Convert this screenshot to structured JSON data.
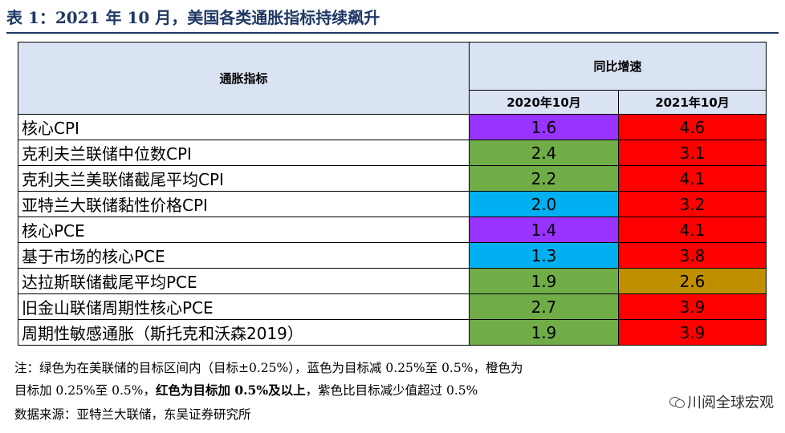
{
  "title": "表 1：2021 年 10 月，美国各类通胀指标持续飙升",
  "table": {
    "col_indicator": "通胀指标",
    "col_group": "同比增速",
    "col_2020": "2020年10月",
    "col_2021": "2021年10月",
    "rows": [
      {
        "name": "核心CPI",
        "v2020": "1.6",
        "v2021": "4.6",
        "c2020": "#9933ff",
        "c2021": "#ff0000"
      },
      {
        "name": "克利夫兰联储中位数CPI",
        "v2020": "2.4",
        "v2021": "3.1",
        "c2020": "#70ad47",
        "c2021": "#ff0000"
      },
      {
        "name": "克利夫兰美联储截尾平均CPI",
        "v2020": "2.2",
        "v2021": "4.1",
        "c2020": "#70ad47",
        "c2021": "#ff0000"
      },
      {
        "name": "亚特兰大联储黏性价格CPI",
        "v2020": "2.0",
        "v2021": "3.2",
        "c2020": "#00b0f0",
        "c2021": "#ff0000"
      },
      {
        "name": "核心PCE",
        "v2020": "1.4",
        "v2021": "4.1",
        "c2020": "#9933ff",
        "c2021": "#ff0000"
      },
      {
        "name": "基于市场的核心PCE",
        "v2020": "1.3",
        "v2021": "3.8",
        "c2020": "#00b0f0",
        "c2021": "#ff0000"
      },
      {
        "name": "达拉斯联储截尾平均PCE",
        "v2020": "1.9",
        "v2021": "2.6",
        "c2020": "#70ad47",
        "c2021": "#bf8f00"
      },
      {
        "name": "旧金山联储周期性核心PCE",
        "v2020": "2.7",
        "v2021": "3.9",
        "c2020": "#70ad47",
        "c2021": "#ff0000"
      },
      {
        "name": "周期性敏感通胀（斯托克和沃森2019）",
        "v2020": "1.9",
        "v2021": "3.9",
        "c2020": "#70ad47",
        "c2021": "#ff0000"
      }
    ]
  },
  "note": {
    "line1": "注：绿色为在美联储的目标区间内（目标±0.25%），蓝色为目标减 0.25%至 0.5%，橙色为",
    "line2_a": "目标加 0.25%至 0.5%，",
    "line2_bold": "红色为目标加 0.5%及以上",
    "line2_b": "，紫色比目标减少值超过 0.5%",
    "source": "数据来源：亚特兰大联储，东吴证券研究所"
  },
  "watermark": {
    "text": "川阅全球宏观",
    "icon": "wechat-icon"
  }
}
